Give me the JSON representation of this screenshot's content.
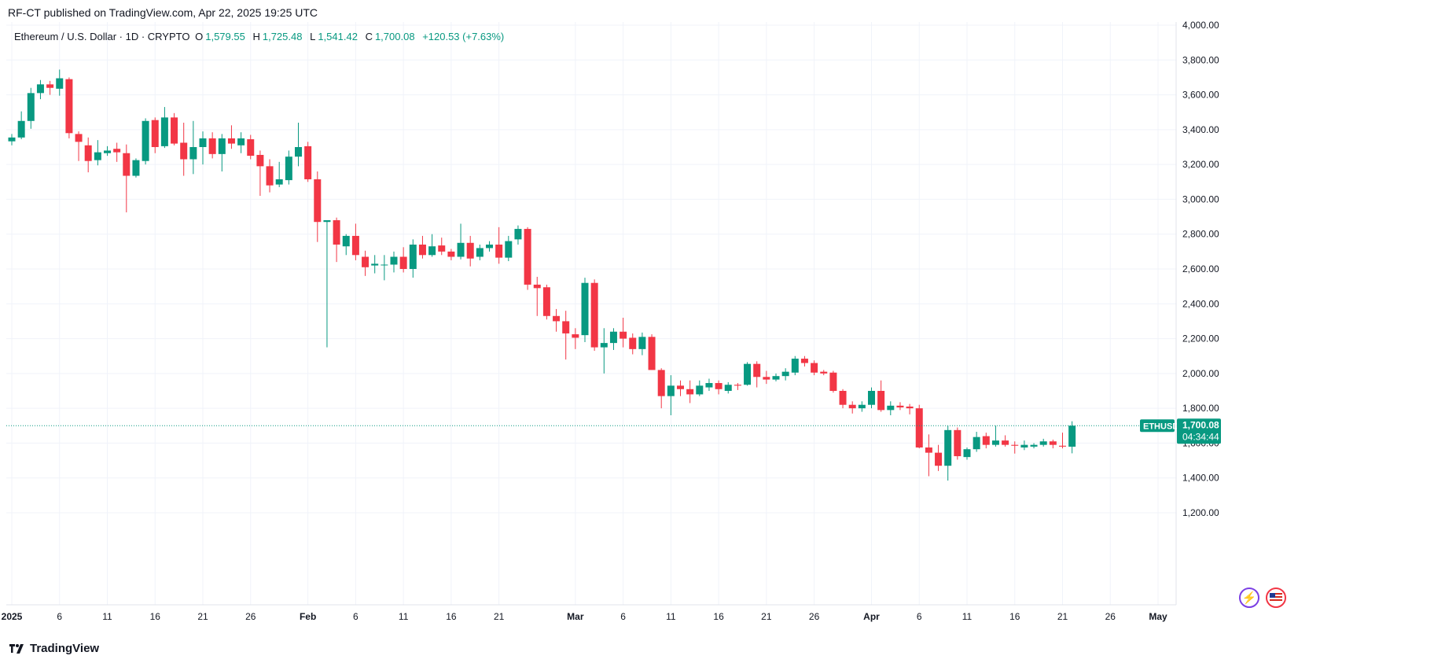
{
  "header": {
    "publisher_line": "RF-CT published on TradingView.com, Apr 22, 2025 19:25 UTC"
  },
  "legend": {
    "symbol": "Ethereum / U.S. Dollar · 1D · CRYPTO",
    "o_label": "O",
    "o_value": "1,579.55",
    "h_label": "H",
    "h_value": "1,725.48",
    "l_label": "L",
    "l_value": "1,541.42",
    "c_label": "C",
    "c_value": "1,700.08",
    "change": "+120.53 (+7.63%)"
  },
  "price_tag": {
    "ticker": "ETHUSD",
    "price": "1,700.08",
    "countdown": "04:34:44"
  },
  "footer": {
    "brand": "TradingView"
  },
  "colors": {
    "up": "#089981",
    "down": "#f23645",
    "grid": "#f0f3fa",
    "axis_text": "#131722"
  },
  "icons": [
    "lightning-icon",
    "us-flag-icon",
    "tradingview-logo-icon"
  ],
  "chart_data": {
    "type": "candlestick",
    "title": "Ethereum / U.S. Dollar · 1D · CRYPTO",
    "ylim": [
      1150,
      4025
    ],
    "y_ticks": [
      "4,000.00",
      "3,800.00",
      "3,600.00",
      "3,400.00",
      "3,200.00",
      "3,000.00",
      "2,800.00",
      "2,600.00",
      "2,400.00",
      "2,200.00",
      "2,000.00",
      "1,800.00",
      "1,600.00",
      "1,400.00",
      "1,200.00"
    ],
    "x_ticks": [
      "2025",
      "6",
      "11",
      "16",
      "21",
      "26",
      "Feb",
      "6",
      "11",
      "16",
      "21",
      "Mar",
      "6",
      "11",
      "16",
      "21",
      "26",
      "Apr",
      "6",
      "11",
      "16",
      "21",
      "26",
      "May"
    ],
    "x_tick_day_index": [
      0,
      5,
      10,
      15,
      20,
      25,
      31,
      36,
      41,
      46,
      51,
      59,
      64,
      69,
      74,
      79,
      84,
      90,
      95,
      100,
      105,
      110,
      115,
      120
    ],
    "grid": true,
    "candles": [
      {
        "o": 3333,
        "h": 3375,
        "l": 3310,
        "c": 3355
      },
      {
        "o": 3355,
        "h": 3505,
        "l": 3345,
        "c": 3450
      },
      {
        "o": 3450,
        "h": 3640,
        "l": 3405,
        "c": 3610
      },
      {
        "o": 3610,
        "h": 3685,
        "l": 3575,
        "c": 3660
      },
      {
        "o": 3660,
        "h": 3680,
        "l": 3600,
        "c": 3640
      },
      {
        "o": 3635,
        "h": 3745,
        "l": 3595,
        "c": 3695
      },
      {
        "o": 3690,
        "h": 3700,
        "l": 3350,
        "c": 3380
      },
      {
        "o": 3375,
        "h": 3390,
        "l": 3220,
        "c": 3330
      },
      {
        "o": 3310,
        "h": 3355,
        "l": 3155,
        "c": 3220
      },
      {
        "o": 3225,
        "h": 3340,
        "l": 3195,
        "c": 3270
      },
      {
        "o": 3265,
        "h": 3305,
        "l": 3250,
        "c": 3280
      },
      {
        "o": 3290,
        "h": 3325,
        "l": 3215,
        "c": 3270
      },
      {
        "o": 3265,
        "h": 3315,
        "l": 2925,
        "c": 3135
      },
      {
        "o": 3135,
        "h": 3235,
        "l": 3125,
        "c": 3225
      },
      {
        "o": 3220,
        "h": 3465,
        "l": 3200,
        "c": 3450
      },
      {
        "o": 3455,
        "h": 3470,
        "l": 3265,
        "c": 3300
      },
      {
        "o": 3305,
        "h": 3530,
        "l": 3295,
        "c": 3470
      },
      {
        "o": 3470,
        "h": 3495,
        "l": 3310,
        "c": 3320
      },
      {
        "o": 3325,
        "h": 3440,
        "l": 3135,
        "c": 3230
      },
      {
        "o": 3230,
        "h": 3450,
        "l": 3145,
        "c": 3300
      },
      {
        "o": 3300,
        "h": 3390,
        "l": 3200,
        "c": 3350
      },
      {
        "o": 3350,
        "h": 3385,
        "l": 3235,
        "c": 3260
      },
      {
        "o": 3260,
        "h": 3375,
        "l": 3160,
        "c": 3350
      },
      {
        "o": 3350,
        "h": 3425,
        "l": 3290,
        "c": 3320
      },
      {
        "o": 3310,
        "h": 3385,
        "l": 3265,
        "c": 3350
      },
      {
        "o": 3345,
        "h": 3370,
        "l": 3230,
        "c": 3250
      },
      {
        "o": 3255,
        "h": 3280,
        "l": 3020,
        "c": 3190
      },
      {
        "o": 3190,
        "h": 3230,
        "l": 3040,
        "c": 3080
      },
      {
        "o": 3085,
        "h": 3215,
        "l": 3070,
        "c": 3115
      },
      {
        "o": 3110,
        "h": 3280,
        "l": 3085,
        "c": 3245
      },
      {
        "o": 3245,
        "h": 3440,
        "l": 3190,
        "c": 3300
      },
      {
        "o": 3305,
        "h": 3330,
        "l": 3100,
        "c": 3115
      },
      {
        "o": 3115,
        "h": 3160,
        "l": 2755,
        "c": 2870
      },
      {
        "o": 2870,
        "h": 2880,
        "l": 2150,
        "c": 2880
      },
      {
        "o": 2880,
        "h": 2895,
        "l": 2640,
        "c": 2740
      },
      {
        "o": 2730,
        "h": 2800,
        "l": 2680,
        "c": 2790
      },
      {
        "o": 2790,
        "h": 2860,
        "l": 2650,
        "c": 2680
      },
      {
        "o": 2670,
        "h": 2705,
        "l": 2560,
        "c": 2610
      },
      {
        "o": 2620,
        "h": 2680,
        "l": 2575,
        "c": 2630
      },
      {
        "o": 2625,
        "h": 2680,
        "l": 2535,
        "c": 2625
      },
      {
        "o": 2625,
        "h": 2700,
        "l": 2580,
        "c": 2670
      },
      {
        "o": 2670,
        "h": 2725,
        "l": 2580,
        "c": 2600
      },
      {
        "o": 2600,
        "h": 2770,
        "l": 2550,
        "c": 2740
      },
      {
        "o": 2740,
        "h": 2790,
        "l": 2660,
        "c": 2680
      },
      {
        "o": 2680,
        "h": 2800,
        "l": 2670,
        "c": 2730
      },
      {
        "o": 2735,
        "h": 2780,
        "l": 2680,
        "c": 2700
      },
      {
        "o": 2700,
        "h": 2715,
        "l": 2650,
        "c": 2670
      },
      {
        "o": 2670,
        "h": 2860,
        "l": 2655,
        "c": 2750
      },
      {
        "o": 2750,
        "h": 2790,
        "l": 2615,
        "c": 2660
      },
      {
        "o": 2670,
        "h": 2740,
        "l": 2650,
        "c": 2720
      },
      {
        "o": 2720,
        "h": 2760,
        "l": 2700,
        "c": 2740
      },
      {
        "o": 2740,
        "h": 2840,
        "l": 2630,
        "c": 2665
      },
      {
        "o": 2665,
        "h": 2790,
        "l": 2645,
        "c": 2760
      },
      {
        "o": 2770,
        "h": 2850,
        "l": 2740,
        "c": 2830
      },
      {
        "o": 2830,
        "h": 2840,
        "l": 2480,
        "c": 2510
      },
      {
        "o": 2510,
        "h": 2555,
        "l": 2330,
        "c": 2490
      },
      {
        "o": 2495,
        "h": 2510,
        "l": 2310,
        "c": 2330
      },
      {
        "o": 2330,
        "h": 2370,
        "l": 2240,
        "c": 2300
      },
      {
        "o": 2300,
        "h": 2360,
        "l": 2080,
        "c": 2230
      },
      {
        "o": 2225,
        "h": 2260,
        "l": 2140,
        "c": 2205
      },
      {
        "o": 2220,
        "h": 2550,
        "l": 2180,
        "c": 2520
      },
      {
        "o": 2520,
        "h": 2540,
        "l": 2130,
        "c": 2150
      },
      {
        "o": 2150,
        "h": 2260,
        "l": 2000,
        "c": 2175
      },
      {
        "o": 2175,
        "h": 2260,
        "l": 2135,
        "c": 2240
      },
      {
        "o": 2240,
        "h": 2320,
        "l": 2150,
        "c": 2200
      },
      {
        "o": 2205,
        "h": 2230,
        "l": 2110,
        "c": 2140
      },
      {
        "o": 2140,
        "h": 2235,
        "l": 2105,
        "c": 2210
      },
      {
        "o": 2210,
        "h": 2225,
        "l": 2020,
        "c": 2020
      },
      {
        "o": 2020,
        "h": 2030,
        "l": 1800,
        "c": 1870
      },
      {
        "o": 1870,
        "h": 1990,
        "l": 1760,
        "c": 1930
      },
      {
        "o": 1930,
        "h": 1960,
        "l": 1870,
        "c": 1910
      },
      {
        "o": 1910,
        "h": 1960,
        "l": 1830,
        "c": 1880
      },
      {
        "o": 1880,
        "h": 1960,
        "l": 1870,
        "c": 1930
      },
      {
        "o": 1920,
        "h": 1970,
        "l": 1900,
        "c": 1945
      },
      {
        "o": 1945,
        "h": 1960,
        "l": 1880,
        "c": 1910
      },
      {
        "o": 1900,
        "h": 1950,
        "l": 1885,
        "c": 1935
      },
      {
        "o": 1935,
        "h": 1945,
        "l": 1905,
        "c": 1930
      },
      {
        "o": 1935,
        "h": 2065,
        "l": 1930,
        "c": 2055
      },
      {
        "o": 2055,
        "h": 2070,
        "l": 1920,
        "c": 1980
      },
      {
        "o": 1980,
        "h": 2015,
        "l": 1940,
        "c": 1965
      },
      {
        "o": 1965,
        "h": 2000,
        "l": 1955,
        "c": 1985
      },
      {
        "o": 1985,
        "h": 2030,
        "l": 1960,
        "c": 2010
      },
      {
        "o": 2005,
        "h": 2100,
        "l": 1990,
        "c": 2085
      },
      {
        "o": 2085,
        "h": 2100,
        "l": 2040,
        "c": 2060
      },
      {
        "o": 2060,
        "h": 2075,
        "l": 1990,
        "c": 2005
      },
      {
        "o": 2010,
        "h": 2020,
        "l": 1990,
        "c": 2000
      },
      {
        "o": 2005,
        "h": 2015,
        "l": 1890,
        "c": 1900
      },
      {
        "o": 1900,
        "h": 1910,
        "l": 1800,
        "c": 1820
      },
      {
        "o": 1820,
        "h": 1840,
        "l": 1770,
        "c": 1800
      },
      {
        "o": 1800,
        "h": 1840,
        "l": 1780,
        "c": 1820
      },
      {
        "o": 1820,
        "h": 1920,
        "l": 1800,
        "c": 1900
      },
      {
        "o": 1900,
        "h": 1960,
        "l": 1780,
        "c": 1790
      },
      {
        "o": 1790,
        "h": 1840,
        "l": 1760,
        "c": 1815
      },
      {
        "o": 1815,
        "h": 1835,
        "l": 1790,
        "c": 1805
      },
      {
        "o": 1810,
        "h": 1825,
        "l": 1765,
        "c": 1800
      },
      {
        "o": 1800,
        "h": 1820,
        "l": 1570,
        "c": 1575
      },
      {
        "o": 1575,
        "h": 1650,
        "l": 1410,
        "c": 1545
      },
      {
        "o": 1545,
        "h": 1590,
        "l": 1440,
        "c": 1470
      },
      {
        "o": 1470,
        "h": 1700,
        "l": 1385,
        "c": 1675
      },
      {
        "o": 1675,
        "h": 1690,
        "l": 1505,
        "c": 1525
      },
      {
        "o": 1520,
        "h": 1575,
        "l": 1505,
        "c": 1565
      },
      {
        "o": 1565,
        "h": 1665,
        "l": 1550,
        "c": 1635
      },
      {
        "o": 1640,
        "h": 1660,
        "l": 1570,
        "c": 1590
      },
      {
        "o": 1590,
        "h": 1700,
        "l": 1580,
        "c": 1615
      },
      {
        "o": 1615,
        "h": 1645,
        "l": 1580,
        "c": 1590
      },
      {
        "o": 1590,
        "h": 1610,
        "l": 1540,
        "c": 1585
      },
      {
        "o": 1575,
        "h": 1615,
        "l": 1560,
        "c": 1590
      },
      {
        "o": 1580,
        "h": 1600,
        "l": 1570,
        "c": 1590
      },
      {
        "o": 1590,
        "h": 1625,
        "l": 1580,
        "c": 1610
      },
      {
        "o": 1610,
        "h": 1620,
        "l": 1570,
        "c": 1590
      },
      {
        "o": 1585,
        "h": 1660,
        "l": 1570,
        "c": 1580
      },
      {
        "o": 1579.55,
        "h": 1725.48,
        "l": 1541.42,
        "c": 1700.08
      }
    ]
  }
}
